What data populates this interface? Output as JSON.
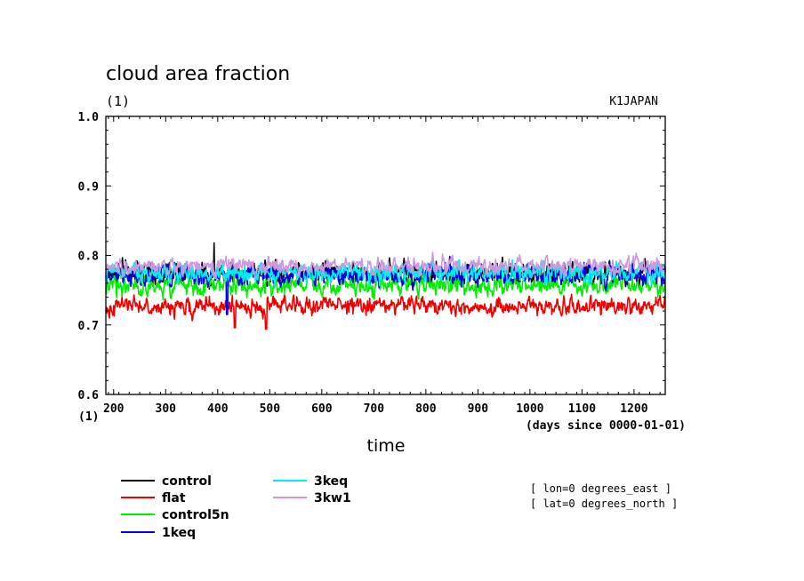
{
  "chart_data": {
    "type": "line",
    "title": "cloud area fraction",
    "units": "(1)",
    "region": "K1JAPAN",
    "xlabel": "time",
    "xunits": "(days since 0000-01-01)",
    "yunits_bottom": "(1)",
    "xlim": [
      185,
      1260
    ],
    "ylim": [
      0.6,
      1.0
    ],
    "x_ticks": [
      200,
      300,
      400,
      500,
      600,
      700,
      800,
      900,
      1000,
      1100,
      1200
    ],
    "y_ticks": [
      "0.6",
      "0.7",
      "0.8",
      "0.9",
      "1.0"
    ],
    "grid": false,
    "legend_placement": "bottom-left",
    "notes": [
      "[ lon=0 degrees_east ]",
      "[ lat=0 degrees_north ]"
    ],
    "series": [
      {
        "name": "control",
        "color": "#000000",
        "mean": 0.775,
        "amp": 0.018,
        "spike": {
          "x": 393,
          "y": 0.818
        }
      },
      {
        "name": "flat",
        "color": "#ee0000",
        "mean": 0.728,
        "amp": 0.015,
        "dip": [
          {
            "x": 433,
            "y": 0.696
          },
          {
            "x": 493,
            "y": 0.694
          }
        ]
      },
      {
        "name": "control5n",
        "color": "#00ee00",
        "mean": 0.757,
        "amp": 0.016
      },
      {
        "name": "1keq",
        "color": "#0000ee",
        "mean": 0.772,
        "amp": 0.018,
        "dip": [
          {
            "x": 418,
            "y": 0.715
          }
        ]
      },
      {
        "name": "3keq",
        "color": "#00eeee",
        "mean": 0.775,
        "amp": 0.017
      },
      {
        "name": "3kw1",
        "color": "#cc99dd",
        "mean": 0.785,
        "amp": 0.014
      }
    ]
  }
}
